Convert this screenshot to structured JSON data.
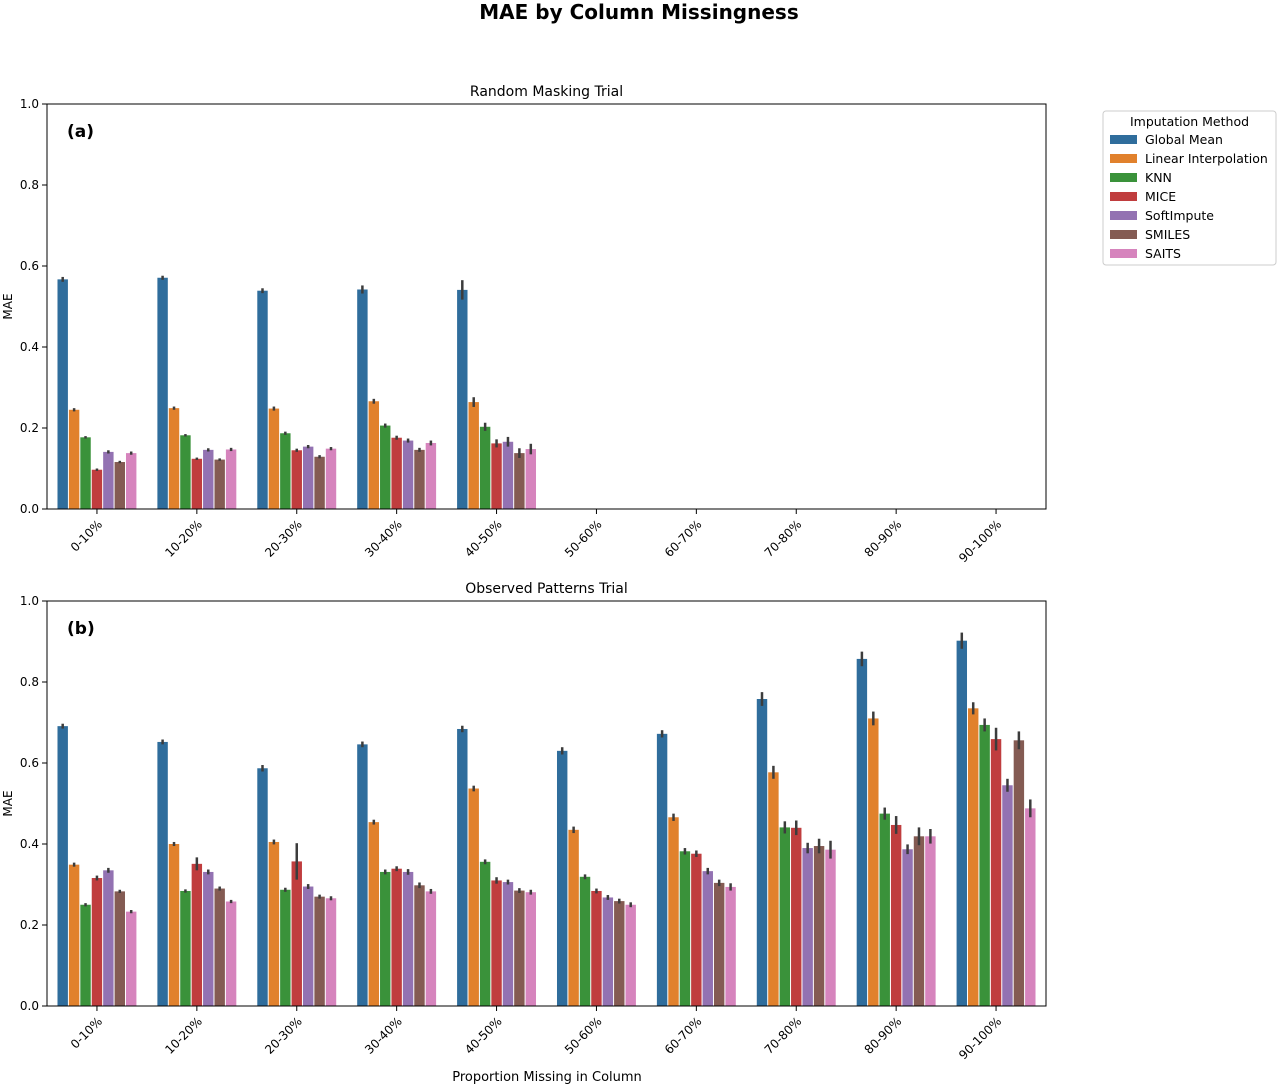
{
  "figure": {
    "title": "MAE by Column Missingness",
    "xlabel": "Proportion Missing in Column"
  },
  "legend": {
    "title": "Imputation Method",
    "placement": "outside-right",
    "items": [
      {
        "name": "Global Mean",
        "color": "#2f6d9c"
      },
      {
        "name": "Linear Interpolation",
        "color": "#e1812c"
      },
      {
        "name": "KNN",
        "color": "#3a923a"
      },
      {
        "name": "MICE",
        "color": "#c03d3e"
      },
      {
        "name": "SoftImpute",
        "color": "#9372b2"
      },
      {
        "name": "SMILES",
        "color": "#845b53"
      },
      {
        "name": "SAITS",
        "color": "#d684bd"
      }
    ]
  },
  "chart_data": [
    {
      "type": "bar",
      "title": "Random Masking Trial",
      "panel_label": "(a)",
      "xlabel": "",
      "ylabel": "MAE",
      "ylim": [
        0,
        1.0
      ],
      "yticks": [
        "0.0",
        "0.2",
        "0.4",
        "0.6",
        "0.8",
        "1.0"
      ],
      "categories": [
        "0-10%",
        "10-20%",
        "20-30%",
        "30-40%",
        "40-50%",
        "50-60%",
        "60-70%",
        "70-80%",
        "80-90%",
        "90-100%"
      ],
      "series": [
        {
          "name": "Global Mean",
          "values": [
            0.567,
            0.571,
            0.539,
            0.542,
            0.541,
            null,
            null,
            null,
            null,
            null
          ],
          "errors": [
            0.006,
            0.005,
            0.006,
            0.01,
            0.024,
            null,
            null,
            null,
            null,
            null
          ]
        },
        {
          "name": "Linear Interpolation",
          "values": [
            0.245,
            0.249,
            0.248,
            0.266,
            0.264,
            null,
            null,
            null,
            null,
            null
          ],
          "errors": [
            0.004,
            0.004,
            0.005,
            0.006,
            0.012,
            null,
            null,
            null,
            null,
            null
          ]
        },
        {
          "name": "KNN",
          "values": [
            0.177,
            0.182,
            0.187,
            0.206,
            0.203,
            null,
            null,
            null,
            null,
            null
          ],
          "errors": [
            0.003,
            0.003,
            0.004,
            0.005,
            0.01,
            null,
            null,
            null,
            null,
            null
          ]
        },
        {
          "name": "MICE",
          "values": [
            0.097,
            0.124,
            0.145,
            0.176,
            0.162,
            null,
            null,
            null,
            null,
            null
          ],
          "errors": [
            0.003,
            0.003,
            0.004,
            0.005,
            0.01,
            null,
            null,
            null,
            null,
            null
          ]
        },
        {
          "name": "SoftImpute",
          "values": [
            0.141,
            0.146,
            0.154,
            0.169,
            0.166,
            null,
            null,
            null,
            null,
            null
          ],
          "errors": [
            0.004,
            0.004,
            0.004,
            0.005,
            0.012,
            null,
            null,
            null,
            null,
            null
          ]
        },
        {
          "name": "SMILES",
          "values": [
            0.116,
            0.122,
            0.129,
            0.146,
            0.138,
            null,
            null,
            null,
            null,
            null
          ],
          "errors": [
            0.003,
            0.003,
            0.004,
            0.005,
            0.012,
            null,
            null,
            null,
            null,
            null
          ]
        },
        {
          "name": "SAITS",
          "values": [
            0.138,
            0.147,
            0.149,
            0.163,
            0.148,
            null,
            null,
            null,
            null,
            null
          ],
          "errors": [
            0.004,
            0.004,
            0.004,
            0.006,
            0.013,
            null,
            null,
            null,
            null,
            null
          ]
        }
      ]
    },
    {
      "type": "bar",
      "title": "Observed Patterns Trial",
      "panel_label": "(b)",
      "xlabel": "Proportion Missing in Column",
      "ylabel": "MAE",
      "ylim": [
        0,
        1.0
      ],
      "yticks": [
        "0.0",
        "0.2",
        "0.4",
        "0.6",
        "0.8",
        "1.0"
      ],
      "categories": [
        "0-10%",
        "10-20%",
        "20-30%",
        "30-40%",
        "40-50%",
        "50-60%",
        "60-70%",
        "70-80%",
        "80-90%",
        "90-100%"
      ],
      "series": [
        {
          "name": "Global Mean",
          "values": [
            0.691,
            0.652,
            0.587,
            0.646,
            0.684,
            0.63,
            0.672,
            0.758,
            0.857,
            0.902
          ],
          "errors": [
            0.006,
            0.006,
            0.008,
            0.007,
            0.008,
            0.009,
            0.009,
            0.017,
            0.018,
            0.02
          ]
        },
        {
          "name": "Linear Interpolation",
          "values": [
            0.349,
            0.4,
            0.405,
            0.454,
            0.537,
            0.435,
            0.466,
            0.577,
            0.71,
            0.735
          ],
          "errors": [
            0.005,
            0.005,
            0.006,
            0.006,
            0.007,
            0.008,
            0.009,
            0.016,
            0.017,
            0.015
          ]
        },
        {
          "name": "KNN",
          "values": [
            0.25,
            0.284,
            0.287,
            0.331,
            0.356,
            0.319,
            0.382,
            0.441,
            0.475,
            0.694
          ],
          "errors": [
            0.004,
            0.004,
            0.005,
            0.006,
            0.006,
            0.006,
            0.008,
            0.015,
            0.015,
            0.016
          ]
        },
        {
          "name": "MICE",
          "values": [
            0.316,
            0.351,
            0.357,
            0.339,
            0.31,
            0.284,
            0.376,
            0.44,
            0.447,
            0.659
          ],
          "errors": [
            0.006,
            0.016,
            0.045,
            0.006,
            0.008,
            0.006,
            0.008,
            0.018,
            0.022,
            0.028
          ]
        },
        {
          "name": "SoftImpute",
          "values": [
            0.335,
            0.331,
            0.295,
            0.331,
            0.306,
            0.268,
            0.333,
            0.39,
            0.387,
            0.545
          ],
          "errors": [
            0.006,
            0.006,
            0.006,
            0.007,
            0.006,
            0.006,
            0.008,
            0.013,
            0.012,
            0.016
          ]
        },
        {
          "name": "SMILES",
          "values": [
            0.283,
            0.29,
            0.27,
            0.298,
            0.285,
            0.259,
            0.304,
            0.395,
            0.419,
            0.656
          ],
          "errors": [
            0.004,
            0.005,
            0.005,
            0.007,
            0.006,
            0.006,
            0.008,
            0.018,
            0.022,
            0.022
          ]
        },
        {
          "name": "SAITS",
          "values": [
            0.233,
            0.258,
            0.266,
            0.283,
            0.281,
            0.25,
            0.294,
            0.386,
            0.419,
            0.488
          ],
          "errors": [
            0.004,
            0.004,
            0.005,
            0.006,
            0.006,
            0.006,
            0.009,
            0.022,
            0.018,
            0.022
          ]
        }
      ]
    }
  ]
}
